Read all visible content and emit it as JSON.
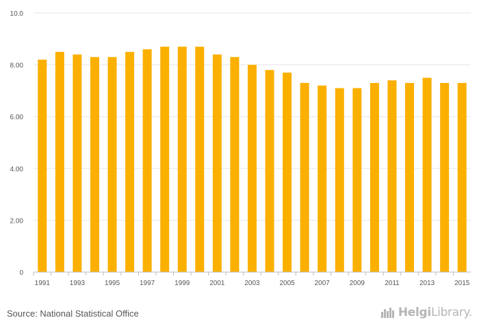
{
  "chart_data": {
    "type": "bar",
    "categories": [
      "1991",
      "1992",
      "1993",
      "1994",
      "1995",
      "1996",
      "1997",
      "1998",
      "1999",
      "2000",
      "2001",
      "2002",
      "2003",
      "2004",
      "2005",
      "2006",
      "2007",
      "2008",
      "2009",
      "2010",
      "2011",
      "2012",
      "2013",
      "2014",
      "2015"
    ],
    "values": [
      8.2,
      8.5,
      8.4,
      8.3,
      8.3,
      8.5,
      8.6,
      8.7,
      8.7,
      8.7,
      8.4,
      8.3,
      8.0,
      7.8,
      7.7,
      7.3,
      7.2,
      7.1,
      7.1,
      7.3,
      7.4,
      7.3,
      7.5,
      7.3,
      7.3
    ],
    "x_tick_labels": [
      "1991",
      "1993",
      "1995",
      "1997",
      "1999",
      "2001",
      "2003",
      "2005",
      "2007",
      "2009",
      "2011",
      "2013",
      "2015"
    ],
    "y_ticks": [
      0,
      2,
      4,
      6,
      8,
      10
    ],
    "y_tick_labels": [
      "0",
      "2.00",
      "4.00",
      "6.00",
      "8.00",
      "10.0"
    ],
    "ylim": [
      0,
      10
    ],
    "grid": true,
    "legend": "none",
    "bar_color": "#FBB000",
    "grid_color": "#E6E6E6",
    "axis_color": "#BBBBBB",
    "title": "",
    "xlabel": "",
    "ylabel": ""
  },
  "footer": {
    "source": "Source: National Statistical Office",
    "logo_part1": "Helgi",
    "logo_part2": "Library."
  },
  "icons": {
    "logo_icon": "city-skyline-icon"
  }
}
